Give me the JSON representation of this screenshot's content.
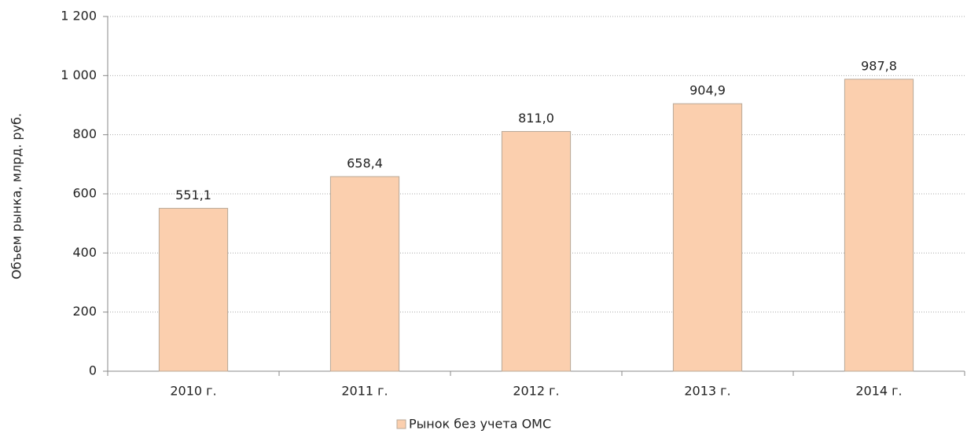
{
  "chart_data": {
    "type": "bar",
    "y_label": "Объем рынка, млрд. руб.",
    "categories": [
      "2010 г.",
      "2011 г.",
      "2012 г.",
      "2013 г.",
      "2014 г."
    ],
    "series": [
      {
        "name": "Рынок без учета ОМС",
        "color": "#fbcfae",
        "values": [
          551.1,
          658.4,
          811.0,
          904.9,
          987.8
        ],
        "value_labels": [
          "551,1",
          "658,4",
          "811,0",
          "904,9",
          "987,8"
        ]
      }
    ],
    "ylim": [
      0,
      1200
    ],
    "yticks": [
      0,
      200,
      400,
      600,
      800,
      {
        "value": 1000,
        "label": "1 000"
      },
      {
        "value": 1200,
        "label": "1 200"
      }
    ],
    "grid": true,
    "legend": "bottom"
  }
}
